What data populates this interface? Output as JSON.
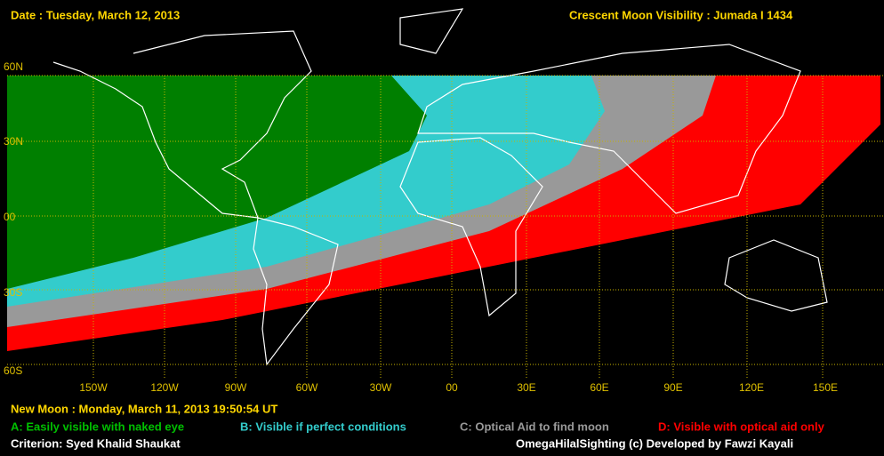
{
  "header": {
    "date": "Date : Tuesday, March 12, 2013",
    "title": "Crescent Moon Visibility : Jumada I  1434"
  },
  "latitude_labels": [
    "60N",
    "30N",
    "00",
    "30S",
    "60S"
  ],
  "longitude_labels": [
    "150W",
    "120W",
    "90W",
    "60W",
    "30W",
    "00",
    "30E",
    "60E",
    "90E",
    "120E",
    "150E"
  ],
  "new_moon": "New Moon : Monday, March 11, 2013  19:50:54  UT",
  "legend": [
    "A: Easily visible with naked eye",
    "B: Visible if perfect conditions",
    "C: Optical Aid to find moon",
    "D: Visible with optical aid only"
  ],
  "footer": {
    "criterion": "Criterion: Syed Khalid Shaukat",
    "credit": "OmegaHilalSighting  (c) Developed by Fawzi Kayali"
  }
}
